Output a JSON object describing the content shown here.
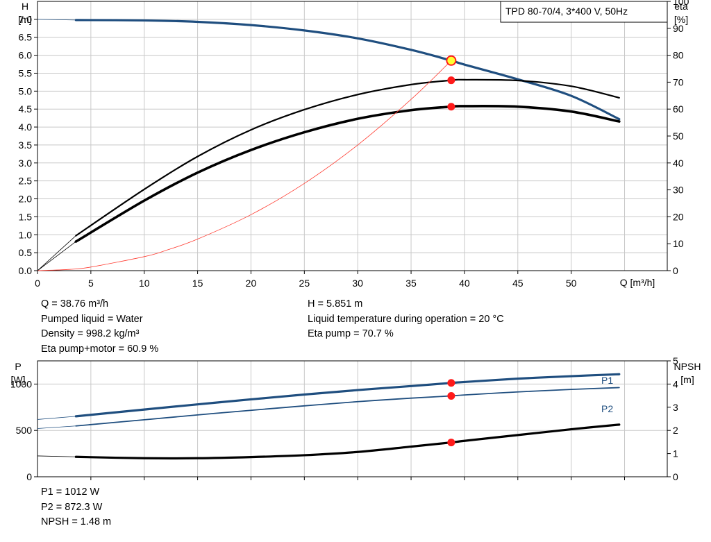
{
  "header": {
    "title": "TPD 80-70/4, 3*400 V, 50Hz"
  },
  "colors": {
    "head_curve": "#1f4e7f",
    "eta_curve": "#000000",
    "system_curve": "#ff3b30",
    "dot": "#ff1a1a",
    "op_point_fill": "#ffff33"
  },
  "info_top": {
    "col1": [
      "Q = 38.76 m³/h",
      "Pumped liquid = Water",
      "Density = 998.2 kg/m³",
      "Eta pump+motor = 60.9 %"
    ],
    "col2": [
      "H = 5.851 m",
      "Liquid temperature during operation = 20 °C",
      "Eta pump = 70.7 %"
    ]
  },
  "info_bottom": [
    "P1 = 1012 W",
    "P2 = 872.3 W",
    "NPSH = 1.48 m"
  ],
  "chart_data": [
    {
      "type": "line",
      "x_axis": {
        "label": "Q [m³/h]",
        "lim": [
          0,
          59
        ],
        "ticks": [
          0,
          5,
          10,
          15,
          20,
          25,
          30,
          35,
          40,
          45,
          50
        ]
      },
      "y_left": {
        "label_top": "H",
        "label_bottom": "[m]",
        "lim": [
          0,
          7.5
        ],
        "ticks": [
          "0.0",
          "0.5",
          "1.0",
          "1.5",
          "2.0",
          "2.5",
          "3.0",
          "3.5",
          "4.0",
          "4.5",
          "5.0",
          "5.5",
          "6.0",
          "6.5",
          "7.0"
        ]
      },
      "y_right": {
        "label_top": "eta",
        "label_bottom": "[%]",
        "lim": [
          0,
          100
        ],
        "ticks": [
          0,
          10,
          20,
          30,
          40,
          50,
          60,
          70,
          80,
          90,
          100
        ]
      },
      "grid": true,
      "series": [
        {
          "axis": "left",
          "style": "head",
          "points": [
            [
              0,
              7.0
            ],
            [
              3.6,
              6.98
            ],
            [
              10,
              6.97
            ],
            [
              15,
              6.93
            ],
            [
              20,
              6.84
            ],
            [
              25,
              6.69
            ],
            [
              30,
              6.47
            ],
            [
              35,
              6.15
            ],
            [
              38.76,
              5.851
            ],
            [
              40,
              5.74
            ],
            [
              45,
              5.33
            ],
            [
              50,
              4.87
            ],
            [
              54.5,
              4.22
            ]
          ]
        },
        {
          "axis": "right",
          "style": "eta-thin",
          "points": [
            [
              0,
              0
            ],
            [
              3.6,
              13.0
            ],
            [
              10,
              30.2
            ],
            [
              15,
              42.4
            ],
            [
              20,
              52.3
            ],
            [
              25,
              59.8
            ],
            [
              30,
              65.4
            ],
            [
              35,
              69.1
            ],
            [
              38.76,
              70.7
            ],
            [
              40,
              70.9
            ],
            [
              45,
              70.6
            ],
            [
              50,
              68.5
            ],
            [
              54.5,
              64.2
            ]
          ]
        },
        {
          "axis": "right",
          "style": "eta-thick",
          "points": [
            [
              0,
              0
            ],
            [
              3.6,
              10.8
            ],
            [
              10,
              26.0
            ],
            [
              15,
              36.4
            ],
            [
              20,
              44.8
            ],
            [
              25,
              51.4
            ],
            [
              30,
              56.4
            ],
            [
              35,
              59.6
            ],
            [
              38.76,
              60.9
            ],
            [
              40,
              61.1
            ],
            [
              45,
              60.9
            ],
            [
              50,
              59.1
            ],
            [
              54.5,
              55.4
            ]
          ]
        },
        {
          "axis": "left",
          "style": "system",
          "points": [
            [
              0,
              0
            ],
            [
              3,
              0.035
            ],
            [
              5,
              0.1
            ],
            [
              10,
              0.39
            ],
            [
              12,
              0.56
            ],
            [
              15,
              0.88
            ],
            [
              20,
              1.56
            ],
            [
              25,
              2.43
            ],
            [
              30,
              3.5
            ],
            [
              35,
              4.77
            ],
            [
              38.76,
              5.851
            ]
          ]
        }
      ],
      "markers": [
        {
          "x": 38.76,
          "y": 5.851,
          "axis": "left",
          "style": "op"
        },
        {
          "x": 38.76,
          "y": 70.7,
          "axis": "right",
          "style": "dot"
        },
        {
          "x": 38.76,
          "y": 60.9,
          "axis": "right",
          "style": "dot"
        }
      ]
    },
    {
      "type": "line",
      "x_axis": {
        "lim": [
          0,
          59
        ]
      },
      "y_left": {
        "label_top": "P",
        "label_bottom": "[W]",
        "lim": [
          0,
          1250
        ],
        "ticks": [
          0,
          500,
          1000
        ]
      },
      "y_right": {
        "label_top": "NPSH",
        "label_bottom": "[m]",
        "lim": [
          0,
          5
        ],
        "ticks": [
          0,
          1,
          2,
          3,
          4,
          5
        ]
      },
      "grid": true,
      "series": [
        {
          "name": "P1",
          "axis": "left",
          "style": "p1",
          "points": [
            [
              0,
              618
            ],
            [
              3.6,
              652
            ],
            [
              10,
              725
            ],
            [
              15,
              781
            ],
            [
              20,
              835
            ],
            [
              25,
              887
            ],
            [
              30,
              935
            ],
            [
              35,
              978
            ],
            [
              38.76,
              1012
            ],
            [
              40,
              1022
            ],
            [
              45,
              1058
            ],
            [
              50,
              1085
            ],
            [
              54.5,
              1106
            ]
          ]
        },
        {
          "name": "P2",
          "axis": "left",
          "style": "p2",
          "points": [
            [
              0,
              520
            ],
            [
              3.6,
              548
            ],
            [
              10,
              615
            ],
            [
              15,
              667
            ],
            [
              20,
              717
            ],
            [
              25,
              765
            ],
            [
              30,
              810
            ],
            [
              35,
              848
            ],
            [
              38.76,
              872.3
            ],
            [
              40,
              882
            ],
            [
              45,
              915
            ],
            [
              50,
              942
            ],
            [
              54.5,
              962
            ]
          ]
        },
        {
          "axis": "right",
          "style": "npsh",
          "points": [
            [
              0,
              0.9
            ],
            [
              3.6,
              0.86
            ],
            [
              10,
              0.8
            ],
            [
              15,
              0.8
            ],
            [
              20,
              0.85
            ],
            [
              25,
              0.93
            ],
            [
              30,
              1.07
            ],
            [
              35,
              1.3
            ],
            [
              38.76,
              1.48
            ],
            [
              40,
              1.55
            ],
            [
              45,
              1.8
            ],
            [
              50,
              2.05
            ],
            [
              54.5,
              2.25
            ]
          ]
        }
      ],
      "markers": [
        {
          "x": 38.76,
          "y": 1012,
          "axis": "left",
          "style": "dot"
        },
        {
          "x": 38.76,
          "y": 872.3,
          "axis": "left",
          "style": "dot"
        },
        {
          "x": 38.76,
          "y": 1.48,
          "axis": "right",
          "style": "dot"
        }
      ]
    }
  ]
}
